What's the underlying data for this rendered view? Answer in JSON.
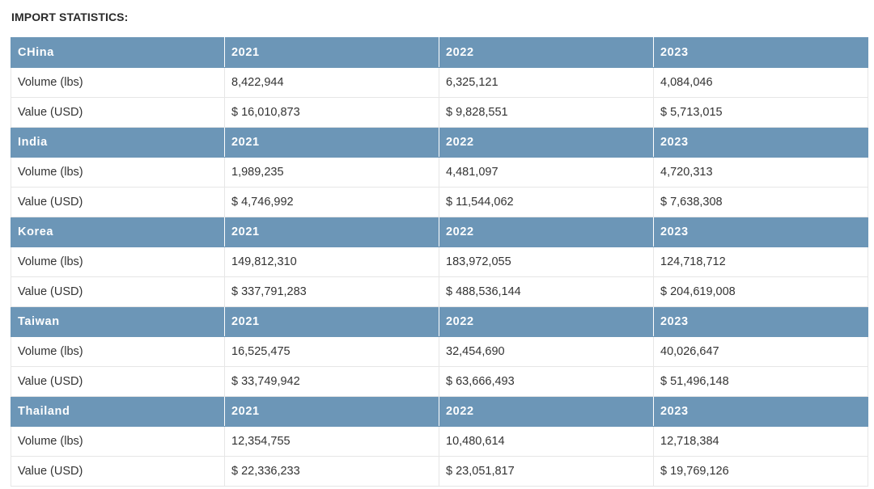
{
  "title": "IMPORT STATISTICS:",
  "years": [
    "2021",
    "2022",
    "2023"
  ],
  "row_labels": {
    "volume": "Volume (lbs)",
    "value": "Value (USD)"
  },
  "countries": [
    {
      "name": "CHina",
      "volume": [
        "8,422,944",
        "6,325,121",
        "4,084,046"
      ],
      "value": [
        "$ 16,010,873",
        "$ 9,828,551",
        "$ 5,713,015"
      ]
    },
    {
      "name": "India",
      "volume": [
        "1,989,235",
        "4,481,097",
        "4,720,313"
      ],
      "value": [
        "$ 4,746,992",
        "$ 11,544,062",
        "$ 7,638,308"
      ]
    },
    {
      "name": "Korea",
      "volume": [
        "149,812,310",
        "183,972,055",
        "124,718,712"
      ],
      "value": [
        "$ 337,791,283",
        "$ 488,536,144",
        "$ 204,619,008"
      ]
    },
    {
      "name": "Taiwan",
      "volume": [
        "16,525,475",
        "32,454,690",
        "40,026,647"
      ],
      "value": [
        "$ 33,749,942",
        "$ 63,666,493",
        "$ 51,496,148"
      ]
    },
    {
      "name": "Thailand",
      "volume": [
        "12,354,755",
        "10,480,614",
        "12,718,384"
      ],
      "value": [
        "$ 22,336,233",
        "$ 23,051,817",
        "$ 19,769,126"
      ]
    }
  ],
  "colors": {
    "header_bg": "#6c96b7",
    "header_text": "#ffffff",
    "border": "#e6e6e6"
  }
}
